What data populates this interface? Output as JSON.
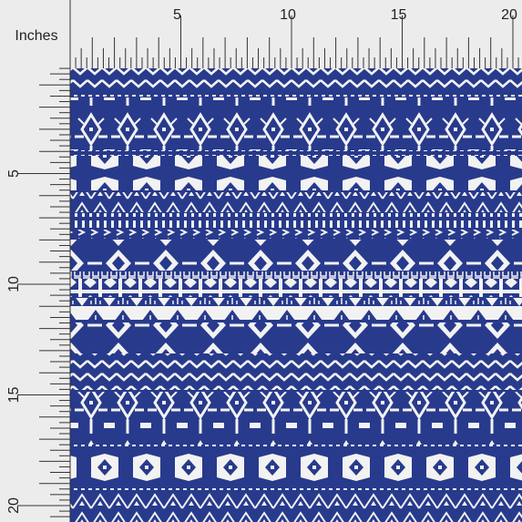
{
  "ruler": {
    "unit": "Inches",
    "top_labels": [
      "5",
      "10",
      "15",
      "20"
    ],
    "left_labels": [
      "5",
      "10",
      "15",
      "20"
    ]
  }
}
